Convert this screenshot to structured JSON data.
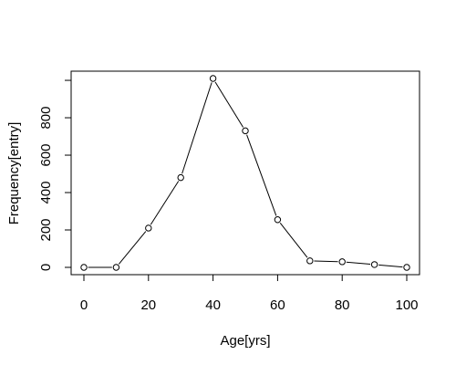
{
  "chart_data": {
    "type": "line",
    "title": "",
    "xlabel": "Age[yrs]",
    "ylabel": "Frequency[entry]",
    "x": [
      0,
      10,
      20,
      30,
      40,
      50,
      60,
      70,
      80,
      90,
      100
    ],
    "series": [
      {
        "values": [
          0,
          0,
          210,
          480,
          1010,
          730,
          255,
          35,
          30,
          15,
          0
        ]
      }
    ],
    "xlim": [
      0,
      100
    ],
    "ylim": [
      0,
      1010
    ],
    "xticks": [
      0,
      20,
      40,
      60,
      80,
      100
    ],
    "xtick_labels": [
      "0",
      "20",
      "40",
      "60",
      "80",
      "100"
    ],
    "yticks": [
      0,
      200,
      400,
      600,
      800,
      1000
    ],
    "ytick_labels": [
      "0",
      "200",
      "400",
      "600",
      "800",
      ""
    ],
    "grid": false,
    "legend": "none",
    "markers": "open-circle",
    "line_color": "#000000"
  }
}
